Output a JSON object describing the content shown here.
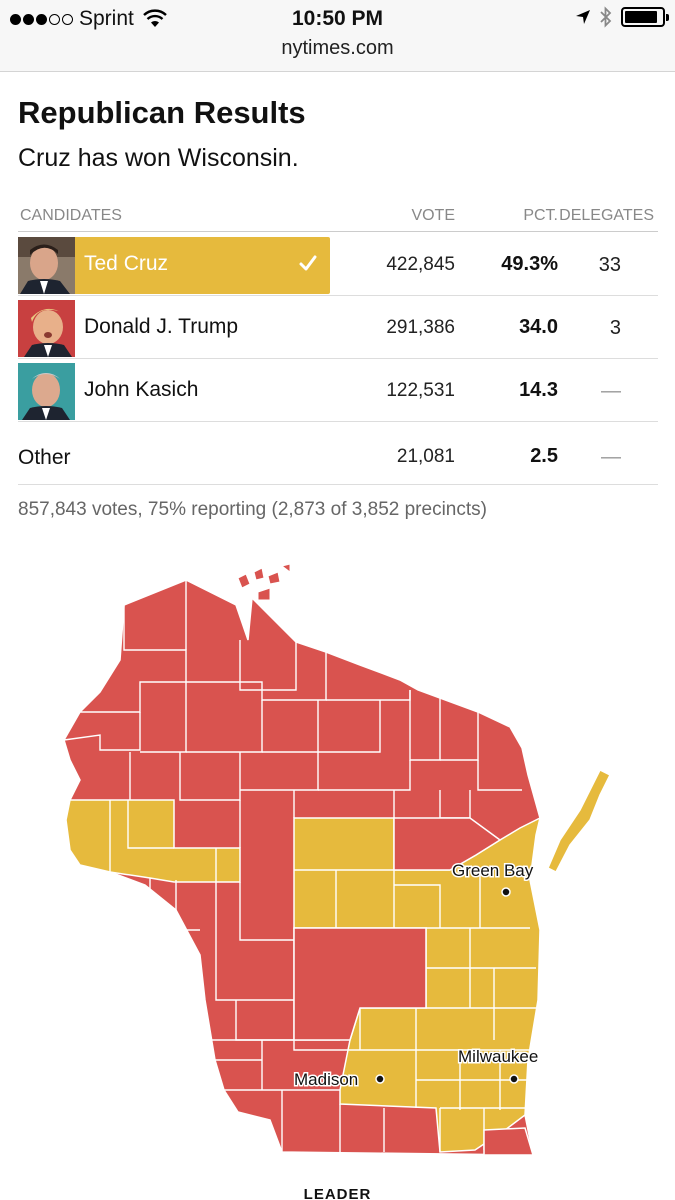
{
  "status_bar": {
    "carrier": "Sprint",
    "time": "10:50 PM",
    "url": "nytimes.com",
    "signal_bars_filled": 3,
    "signal_bars_total": 5
  },
  "header": {
    "title": "Republican Results",
    "subtitle": "Cruz has won Wisconsin."
  },
  "table": {
    "columns": {
      "candidates": "CANDIDATES",
      "vote": "VOTE",
      "pct": "PCT.",
      "delegates": "DELEGATES"
    },
    "rows": [
      {
        "name": "Ted Cruz",
        "vote": "422,845",
        "pct": "49.3%",
        "delegates": "33",
        "winner": true
      },
      {
        "name": "Donald J. Trump",
        "vote": "291,386",
        "pct": "34.0",
        "delegates": "3",
        "winner": false
      },
      {
        "name": "John Kasich",
        "vote": "122,531",
        "pct": "14.3",
        "delegates": "—",
        "winner": false
      },
      {
        "name": "Other",
        "vote": "21,081",
        "pct": "2.5",
        "delegates": "—",
        "winner": false
      }
    ],
    "reporting": "857,843 votes, 75% reporting (2,873 of 3,852 precincts)"
  },
  "map": {
    "cities": {
      "green_bay": "Green Bay",
      "madison": "Madison",
      "milwaukee": "Milwaukee"
    },
    "colors": {
      "cruz": "#e6ba3d",
      "trump": "#d9534f",
      "border": "#ffffff"
    }
  },
  "footer": {
    "leader_label": "LEADER"
  }
}
